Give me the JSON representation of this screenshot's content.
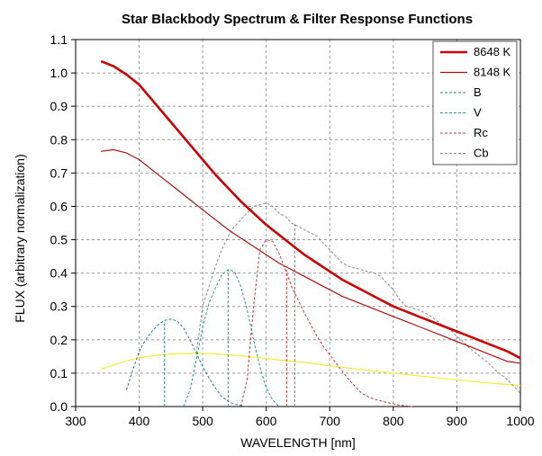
{
  "chart_data": {
    "type": "line",
    "title": "Star Blackbody Spectrum & Filter Response Functions",
    "xlabel": "WAVELENGTH [nm]",
    "ylabel": "FLUX (arbitrary normalization)",
    "xlim": [
      300,
      1000
    ],
    "ylim": [
      0,
      1.1
    ],
    "xticks": [
      300,
      400,
      500,
      600,
      700,
      800,
      900,
      1000
    ],
    "yticks": [
      0.0,
      0.1,
      0.2,
      0.3,
      0.4,
      0.5,
      0.6,
      0.7,
      0.8,
      0.9,
      1.0,
      1.1
    ],
    "ytick_labels": [
      "0.0",
      "0.1",
      "0.2",
      "0.3",
      "0.4",
      "0.5",
      "0.6",
      "0.7",
      "0.8",
      "0.9",
      "1.0",
      "1.1"
    ],
    "grid": true,
    "legend_position": "top-right",
    "series": [
      {
        "name": "8648 K",
        "color": "#cc0000",
        "style": "solid-thick",
        "legend": true,
        "x": [
          340,
          360,
          380,
          400,
          420,
          440,
          460,
          480,
          500,
          520,
          540,
          560,
          580,
          600,
          620,
          640,
          660,
          680,
          700,
          720,
          740,
          760,
          780,
          800,
          820,
          840,
          860,
          880,
          900,
          920,
          940,
          960,
          980,
          1000
        ],
        "y": [
          1.035,
          1.02,
          0.995,
          0.965,
          0.92,
          0.875,
          0.83,
          0.785,
          0.74,
          0.695,
          0.655,
          0.615,
          0.58,
          0.545,
          0.515,
          0.485,
          0.455,
          0.43,
          0.405,
          0.38,
          0.36,
          0.34,
          0.32,
          0.3,
          0.285,
          0.27,
          0.255,
          0.24,
          0.225,
          0.21,
          0.195,
          0.18,
          0.165,
          0.145
        ]
      },
      {
        "name": "8148 K",
        "color": "#b01010",
        "style": "solid-thin",
        "legend": true,
        "x": [
          340,
          360,
          380,
          400,
          420,
          440,
          460,
          480,
          500,
          520,
          540,
          560,
          580,
          600,
          620,
          640,
          660,
          680,
          700,
          720,
          740,
          760,
          780,
          800,
          820,
          840,
          860,
          880,
          900,
          920,
          940,
          960,
          980,
          1000
        ],
        "y": [
          0.765,
          0.77,
          0.76,
          0.74,
          0.71,
          0.68,
          0.65,
          0.62,
          0.59,
          0.56,
          0.53,
          0.505,
          0.48,
          0.455,
          0.43,
          0.41,
          0.39,
          0.37,
          0.35,
          0.33,
          0.315,
          0.3,
          0.285,
          0.27,
          0.255,
          0.24,
          0.225,
          0.21,
          0.195,
          0.18,
          0.165,
          0.15,
          0.135,
          0.13
        ]
      },
      {
        "name": "B",
        "color": "#2a7c96",
        "style": "dashed",
        "legend": true,
        "x": [
          380,
          390,
          400,
          410,
          420,
          430,
          440,
          450,
          460,
          470,
          480,
          490,
          500,
          510,
          520,
          530,
          540,
          550,
          560,
          570
        ],
        "y": [
          0.05,
          0.11,
          0.165,
          0.2,
          0.225,
          0.245,
          0.258,
          0.262,
          0.256,
          0.235,
          0.2,
          0.16,
          0.12,
          0.085,
          0.055,
          0.03,
          0.015,
          0.007,
          0.003,
          0.0
        ],
        "marker_x": 440,
        "marker_y": 0.25
      },
      {
        "name": "V",
        "color": "#1ea37e",
        "style": "dashed",
        "legend": true,
        "x": [
          470,
          480,
          490,
          500,
          510,
          520,
          530,
          540,
          550,
          560,
          570,
          580,
          590,
          600,
          610,
          620
        ],
        "y": [
          0.0,
          0.05,
          0.14,
          0.24,
          0.31,
          0.355,
          0.395,
          0.41,
          0.405,
          0.36,
          0.29,
          0.2,
          0.12,
          0.055,
          0.02,
          0.0
        ],
        "marker_x": 540,
        "marker_y": 0.41
      },
      {
        "name": "Rc",
        "color": "#c83a3a",
        "style": "dashed",
        "legend": true,
        "x": [
          560,
          570,
          580,
          590,
          600,
          610,
          620,
          630,
          640,
          650,
          660,
          670,
          680,
          690,
          700,
          710,
          720,
          730,
          740,
          750,
          760,
          770,
          780,
          790,
          800,
          810,
          820,
          830
        ],
        "y": [
          0.0,
          0.08,
          0.3,
          0.47,
          0.5,
          0.495,
          0.46,
          0.41,
          0.36,
          0.32,
          0.28,
          0.245,
          0.21,
          0.18,
          0.155,
          0.13,
          0.105,
          0.08,
          0.06,
          0.04,
          0.03,
          0.022,
          0.017,
          0.012,
          0.008,
          0.004,
          0.002,
          0.0
        ],
        "marker_x": 632,
        "marker_y": 0.41
      },
      {
        "name": "Cb",
        "color": "#8a8a8a",
        "style": "dashed",
        "legend": true,
        "x": [
          490,
          500,
          510,
          520,
          530,
          540,
          550,
          560,
          570,
          580,
          590,
          600,
          610,
          620,
          630,
          640,
          650,
          660,
          670,
          680,
          690,
          700,
          710,
          720,
          730,
          740,
          750,
          760,
          770,
          780,
          790,
          800,
          810,
          820,
          830,
          840,
          850,
          860,
          870,
          880,
          890,
          900,
          910,
          920,
          930,
          940,
          950,
          960,
          970,
          980,
          990,
          1000
        ],
        "y": [
          0.16,
          0.3,
          0.36,
          0.42,
          0.47,
          0.51,
          0.54,
          0.56,
          0.58,
          0.6,
          0.605,
          0.61,
          0.6,
          0.58,
          0.57,
          0.55,
          0.54,
          0.53,
          0.52,
          0.51,
          0.49,
          0.47,
          0.45,
          0.43,
          0.42,
          0.415,
          0.41,
          0.405,
          0.4,
          0.39,
          0.37,
          0.35,
          0.32,
          0.3,
          0.295,
          0.29,
          0.28,
          0.27,
          0.255,
          0.24,
          0.23,
          0.21,
          0.195,
          0.175,
          0.16,
          0.145,
          0.13,
          0.11,
          0.095,
          0.08,
          0.06,
          0.04
        ],
        "marker_x": 645,
        "marker_y": 0.55
      },
      {
        "name": "",
        "color": "#f0f03a",
        "style": "solid-thin",
        "legend": false,
        "x": [
          340,
          360,
          380,
          400,
          420,
          440,
          460,
          480,
          500,
          520,
          540,
          560,
          580,
          600,
          620,
          640,
          660,
          680,
          700,
          720,
          740,
          760,
          780,
          800,
          820,
          840,
          860,
          880,
          900,
          920,
          940,
          960,
          980,
          1000
        ],
        "y": [
          0.112,
          0.125,
          0.137,
          0.146,
          0.152,
          0.156,
          0.158,
          0.159,
          0.159,
          0.158,
          0.155,
          0.152,
          0.148,
          0.144,
          0.14,
          0.136,
          0.132,
          0.127,
          0.122,
          0.118,
          0.113,
          0.109,
          0.105,
          0.1,
          0.096,
          0.092,
          0.088,
          0.084,
          0.08,
          0.076,
          0.072,
          0.069,
          0.066,
          0.063
        ]
      }
    ]
  }
}
